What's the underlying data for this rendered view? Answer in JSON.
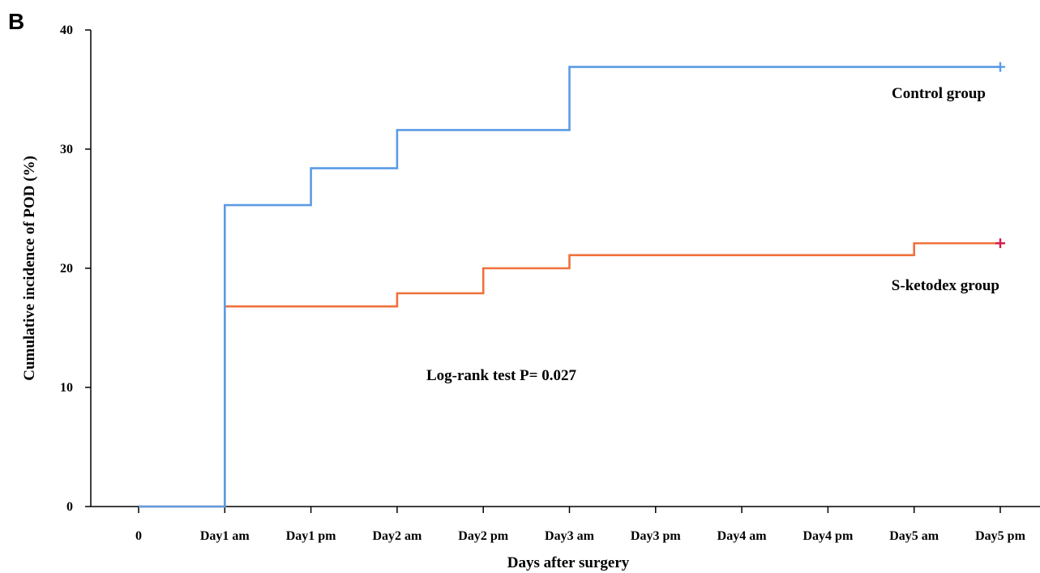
{
  "panel_label": "B",
  "chart_data": {
    "type": "line",
    "step": true,
    "xlabel": "Days after surgery",
    "ylabel": "Cumulative incidence of POD (%)",
    "categories": [
      "0",
      "Day1 am",
      "Day1 pm",
      "Day2 am",
      "Day2 pm",
      "Day3 am",
      "Day3 pm",
      "Day4 am",
      "Day4 pm",
      "Day5 am",
      "Day5 pm"
    ],
    "ylim": [
      0,
      40
    ],
    "yticks": [
      "0",
      "10",
      "20",
      "30",
      "40"
    ],
    "grid": false,
    "series": [
      {
        "name": "Control group",
        "color": "#5B9BE6",
        "censor_color": "#5B9BE6",
        "values": [
          0,
          25.3,
          28.4,
          31.6,
          31.6,
          36.9,
          36.9,
          36.9,
          36.9,
          36.9,
          36.9
        ]
      },
      {
        "name": "S-ketodex group",
        "color": "#F0703A",
        "censor_color": "#D81B4C",
        "values": [
          0,
          16.8,
          16.8,
          17.9,
          20.0,
          21.1,
          21.1,
          21.1,
          21.1,
          22.1,
          22.1
        ]
      }
    ],
    "annotations": [
      "Log-rank test P= 0.027"
    ]
  }
}
